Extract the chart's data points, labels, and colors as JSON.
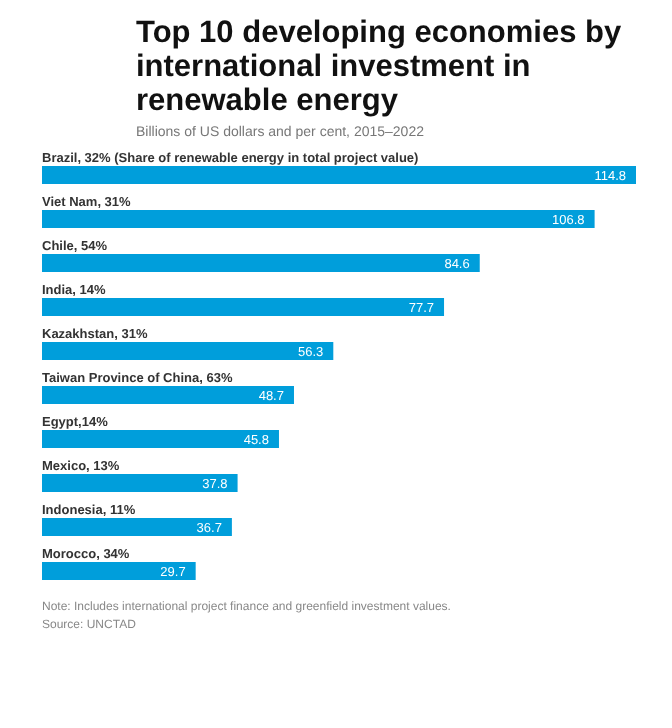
{
  "chart_data": {
    "type": "bar",
    "orientation": "horizontal",
    "title": "Top 10 developing economies by international investment in renewable energy",
    "subtitle": "Billions of US dollars and per cent, 2015–2022",
    "categories": [
      "Brazil, 32% (Share of renewable energy in total project value)",
      "Viet Nam, 31%",
      "Chile, 54%",
      "India, 14%",
      "Kazakhstan, 31%",
      "Taiwan Province of China, 63%",
      "Egypt,14%",
      "Mexico, 13%",
      "Indonesia, 11%",
      "Morocco, 34%"
    ],
    "values": [
      114.8,
      106.8,
      84.6,
      77.7,
      56.3,
      48.7,
      45.8,
      37.8,
      36.7,
      29.7
    ],
    "color": "#009edb",
    "data_labels": true,
    "grid": false,
    "legend": false,
    "annotations": [
      "Note: Includes international project finance and greenfield investment values.",
      "Source: UNCTAD"
    ]
  }
}
